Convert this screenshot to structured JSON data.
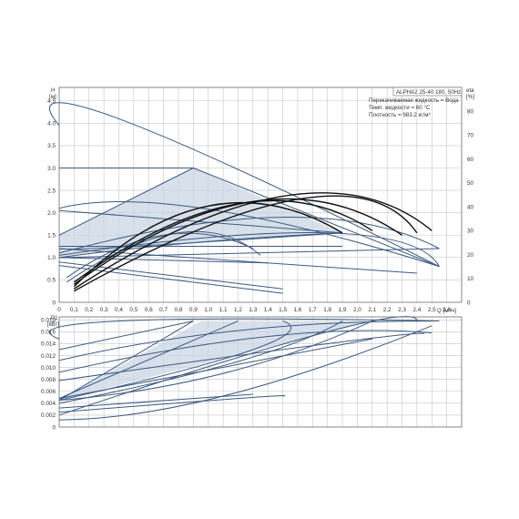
{
  "chart_data": {
    "type": "line",
    "title": "ALPHA2 25-40 180, 50Hz",
    "info": [
      "Перекачиваемая жидкость = Вода",
      "Темп. жидкости = 60 °C",
      "Плотность = 983.2 кг/м³"
    ],
    "colors": {
      "curve": "#3d5a80",
      "fill": "#c9d5e4",
      "eff": "#111111",
      "grid": "#c4c4c4",
      "frame": "#6a6a6a"
    },
    "top": {
      "ylabel": [
        "H",
        "[м]"
      ],
      "y2label": [
        "eta",
        "[%]"
      ],
      "xlabel": "Q [м³/ч]",
      "xlim": [
        0,
        2.7
      ],
      "ylim": [
        0,
        4.8
      ],
      "y2lim": [
        0,
        90
      ],
      "xticks": [
        "0",
        "0,1",
        "0,2",
        "0,3",
        "0,4",
        "0,5",
        "0,6",
        "0,7",
        "0,8",
        "0,9",
        "1,0",
        "1,1",
        "1,2",
        "1,3",
        "1,4",
        "1,5",
        "1,6",
        "1,7",
        "1,8",
        "1,9",
        "2,0",
        "2,1",
        "2,2",
        "2,3",
        "2,4",
        "2,5",
        "2,6"
      ],
      "yticks": [
        "0",
        "0.5",
        "1.0",
        "1.5",
        "2.0",
        "2.5",
        "3.0",
        "3.5",
        "4.0",
        "4.5"
      ],
      "y2ticks": [
        "0",
        "10",
        "20",
        "30",
        "40",
        "50",
        "60",
        "70",
        "80"
      ],
      "grid": true,
      "shaded_regions": [
        [
          [
            0,
            1.0
          ],
          [
            0.9,
            3.0
          ],
          [
            1.9,
            1.55
          ],
          [
            0.9,
            1.33
          ],
          [
            0,
            1.0
          ]
        ],
        [
          [
            0,
            1.5
          ],
          [
            0.9,
            3.0
          ],
          [
            0,
            1.0
          ]
        ]
      ],
      "head_curves": [
        [
          [
            0,
            3.95
          ],
          [
            0.4,
            4.1
          ],
          [
            2.55,
            0.8
          ]
        ],
        [
          [
            0,
            3.0
          ],
          [
            0.9,
            3.0
          ]
        ],
        [
          [
            0.9,
            3.0
          ],
          [
            2.55,
            0.8
          ]
        ],
        [
          [
            0,
            1.5
          ],
          [
            0.9,
            3.0
          ]
        ],
        [
          [
            0,
            2.1
          ],
          [
            1.0,
            2.08
          ],
          [
            2.55,
            0.8
          ]
        ],
        [
          [
            0,
            2.05
          ],
          [
            1.9,
            1.55
          ]
        ],
        [
          [
            0,
            1.2
          ],
          [
            0.5,
            1.25
          ],
          [
            1.9,
            1.55
          ]
        ],
        [
          [
            0,
            1.0
          ],
          [
            2.55,
            1.2
          ]
        ],
        [
          [
            0,
            1.0
          ],
          [
            1.4,
            0.88
          ]
        ],
        [
          [
            0,
            1.0
          ],
          [
            0.9,
            1.33
          ],
          [
            1.9,
            1.55
          ]
        ],
        [
          [
            0,
            1.25
          ],
          [
            1.9,
            1.25
          ]
        ],
        [
          [
            0,
            1.2
          ],
          [
            2.4,
            0.65
          ]
        ],
        [
          [
            0,
            1.1
          ],
          [
            1.5,
            1.9
          ],
          [
            2.55,
            1.2
          ]
        ],
        [
          [
            0,
            1.05
          ],
          [
            1.8,
            1.55
          ],
          [
            2.55,
            0.8
          ]
        ],
        [
          [
            0,
            0.9
          ],
          [
            1.5,
            0.3
          ]
        ],
        [
          [
            0,
            0.82
          ],
          [
            1.5,
            0.2
          ]
        ],
        [
          [
            0.05,
            0.55
          ],
          [
            0.7,
            1.5
          ],
          [
            1.3,
            1.2
          ]
        ],
        [
          [
            0.05,
            0.45
          ],
          [
            0.8,
            1.55
          ],
          [
            1.35,
            1.05
          ]
        ]
      ],
      "eff_curves": [
        [
          [
            0.1,
            0.3
          ],
          [
            1.5,
            2.37
          ],
          [
            2.5,
            1.6
          ]
        ],
        [
          [
            0.1,
            0.25
          ],
          [
            1.6,
            2.3
          ],
          [
            2.4,
            1.55
          ]
        ],
        [
          [
            0.1,
            0.4
          ],
          [
            1.3,
            2.25
          ],
          [
            2.3,
            1.5
          ]
        ],
        [
          [
            0.1,
            0.45
          ],
          [
            1.2,
            2.2
          ],
          [
            2.1,
            1.6
          ]
        ],
        [
          [
            0.1,
            0.35
          ],
          [
            1.0,
            2.15
          ],
          [
            1.9,
            1.55
          ]
        ]
      ]
    },
    "bottom": {
      "ylabel": [
        "P1",
        "[кВт]"
      ],
      "xlim": [
        0,
        2.7
      ],
      "ylim": [
        0,
        0.0185
      ],
      "yticks": [
        "0",
        "0.002",
        "0.004",
        "0.006",
        "0.008",
        "0.010",
        "0.012",
        "0.014",
        "0.016",
        "0.018"
      ],
      "grid": true,
      "shaded_regions": [
        [
          [
            0.95,
            0.0178
          ],
          [
            2.1,
            0.0178
          ],
          [
            0,
            0.0045
          ],
          [
            0.95,
            0.0178
          ]
        ]
      ],
      "power_curves": [
        [
          [
            0,
            0.0148
          ],
          [
            0.4,
            0.0178
          ],
          [
            2.55,
            0.0178
          ]
        ],
        [
          [
            0,
            0.013
          ],
          [
            0.9,
            0.0178
          ]
        ],
        [
          [
            0,
            0.0112
          ],
          [
            1.2,
            0.0162
          ],
          [
            2.5,
            0.0178
          ]
        ],
        [
          [
            0,
            0.0092
          ],
          [
            1.4,
            0.0152
          ],
          [
            2.5,
            0.0158
          ]
        ],
        [
          [
            0,
            0.0078
          ],
          [
            1.8,
            0.014
          ],
          [
            2.45,
            0.0157
          ]
        ],
        [
          [
            0,
            0.0045
          ],
          [
            0.9,
            0.0178
          ]
        ],
        [
          [
            0,
            0.0048
          ],
          [
            1.2,
            0.0178
          ]
        ],
        [
          [
            0,
            0.0045
          ],
          [
            1.3,
            0.013
          ],
          [
            1.5,
            0.0178
          ]
        ],
        [
          [
            0,
            0.004
          ],
          [
            1.2,
            0.011
          ],
          [
            1.9,
            0.0178
          ]
        ],
        [
          [
            0,
            0.0045
          ],
          [
            1.1,
            0.009
          ],
          [
            2.1,
            0.0178
          ]
        ],
        [
          [
            0,
            0.0048
          ],
          [
            2.1,
            0.0148
          ]
        ],
        [
          [
            0,
            0.0025
          ],
          [
            1.2,
            0.0048
          ],
          [
            1.5,
            0.0052
          ]
        ],
        [
          [
            0,
            0.0032
          ],
          [
            1.3,
            0.0055
          ]
        ],
        [
          [
            0,
            0.0012
          ],
          [
            1.1,
            0.0052
          ],
          [
            2.5,
            0.017
          ]
        ],
        [
          [
            0,
            0.002
          ],
          [
            1.8,
            0.016
          ],
          [
            2.4,
            0.0178
          ]
        ]
      ]
    }
  }
}
